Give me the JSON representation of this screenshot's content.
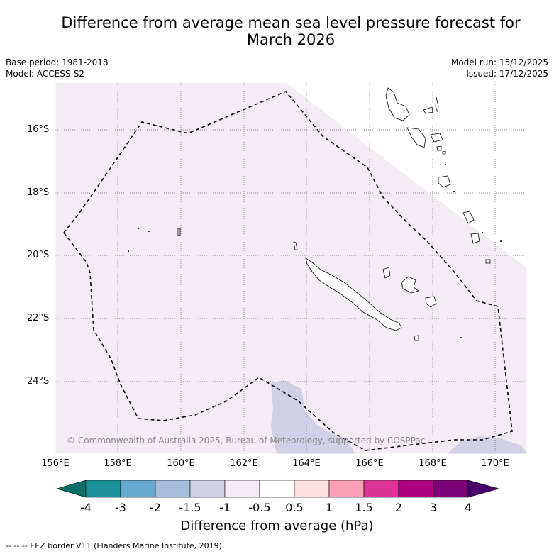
{
  "title_line1": "Difference from average mean sea level pressure forecast for",
  "title_line2": "March 2026",
  "meta": {
    "base_period": "Base period: 1981-2018",
    "model": "Model: ACCESS-S2",
    "model_run": "Model run: 15/12/2025",
    "issued": "Issued: 17/12/2025"
  },
  "map": {
    "lat_labels": [
      "16°S",
      "18°S",
      "20°S",
      "22°S",
      "24°S"
    ],
    "lon_labels": [
      "156°E",
      "158°E",
      "160°E",
      "162°E",
      "164°E",
      "166°E",
      "168°E",
      "170°E"
    ],
    "credit": "© Commonwealth of Australia 2025, Bureau of Meteorology, supported by COSPPac",
    "colors": {
      "background_anomaly": "#f3ecf5",
      "negative_anomaly": "#d0d1e6",
      "eez_border": "#000000"
    }
  },
  "colorbar": {
    "ticks": [
      "-4",
      "-3",
      "-2",
      "-1.5",
      "-1",
      "-0.5",
      "0.5",
      "1",
      "1.5",
      "2",
      "3",
      "4"
    ],
    "colors": [
      "#0b6e68",
      "#1b9199",
      "#67a9cf",
      "#a6bddb",
      "#d0d1e6",
      "#f3ecf5",
      "#ffffff",
      "#fde0dd",
      "#fa9fb5",
      "#dd3497",
      "#ae017e",
      "#7a0177",
      "#49006a"
    ],
    "label": "Difference from average (hPa)"
  },
  "footnote": "--  --  -- EEZ border V11 (Flanders Marine Institute, 2019)."
}
